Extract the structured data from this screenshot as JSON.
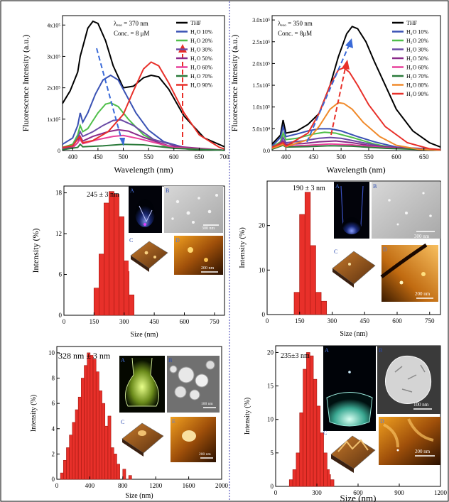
{
  "chart_data": [
    {
      "type": "line",
      "xlabel": "Wavelength (nm)",
      "ylabel": "Fluorescence Intensity (a.u.)",
      "xlim": [
        380,
        700
      ],
      "ylim": [
        0,
        430000
      ],
      "xticks": [
        400,
        450,
        500,
        550,
        600,
        650,
        700
      ],
      "yticks": [
        {
          "v": 0,
          "t": "0"
        },
        {
          "v": 100000,
          "t": "1x10⁵"
        },
        {
          "v": 200000,
          "t": "2x10⁵"
        },
        {
          "v": 300000,
          "t": "3x10⁵"
        },
        {
          "v": 400000,
          "t": "4x10⁵"
        }
      ],
      "annotation": [
        "λₑₓₒ = 370 nm",
        "Conc. = 8 μM"
      ],
      "legend_position": "top-right",
      "series": [
        {
          "name": "THF",
          "color": "#000000",
          "x": [
            380,
            395,
            410,
            415,
            420,
            430,
            440,
            450,
            465,
            480,
            500,
            520,
            540,
            555,
            570,
            590,
            620,
            660,
            700
          ],
          "y": [
            150000,
            190000,
            250000,
            300000,
            330000,
            390000,
            412000,
            405000,
            350000,
            270000,
            200000,
            205000,
            232000,
            240000,
            235000,
            195000,
            110000,
            40000,
            12000
          ]
        },
        {
          "name": "H₂O 10%",
          "color": "#3a52b4",
          "x": [
            380,
            400,
            410,
            415,
            420,
            430,
            445,
            460,
            475,
            490,
            505,
            525,
            550,
            580,
            620,
            660,
            700
          ],
          "y": [
            20000,
            40000,
            80000,
            120000,
            90000,
            120000,
            180000,
            225000,
            240000,
            225000,
            180000,
            120000,
            65000,
            28000,
            10000,
            3000,
            1000
          ]
        },
        {
          "name": "H₂O 20%",
          "color": "#4fbf4a",
          "x": [
            380,
            400,
            410,
            415,
            420,
            430,
            450,
            465,
            475,
            490,
            510,
            540,
            580,
            630,
            700
          ],
          "y": [
            10000,
            20000,
            50000,
            80000,
            60000,
            70000,
            120000,
            148000,
            152000,
            140000,
            100000,
            50000,
            15000,
            4000,
            1000
          ]
        },
        {
          "name": "H₂O 30%",
          "color": "#6a4aa5",
          "x": [
            380,
            400,
            410,
            415,
            420,
            440,
            460,
            480,
            495,
            520,
            560,
            620,
            700
          ],
          "y": [
            8000,
            15000,
            40000,
            60000,
            45000,
            60000,
            80000,
            96000,
            98000,
            80000,
            35000,
            8000,
            1000
          ]
        },
        {
          "name": "H₂O 50%",
          "color": "#8a2a8a",
          "x": [
            380,
            400,
            410,
            415,
            420,
            440,
            470,
            490,
            510,
            540,
            590,
            700
          ],
          "y": [
            5000,
            10000,
            25000,
            45000,
            30000,
            45000,
            60000,
            66000,
            62000,
            42000,
            15000,
            1000
          ]
        },
        {
          "name": "H₂O 60%",
          "color": "#e8409a",
          "x": [
            380,
            400,
            415,
            420,
            450,
            480,
            500,
            530,
            600,
            700
          ],
          "y": [
            4000,
            8000,
            35000,
            22000,
            35000,
            45000,
            48000,
            38000,
            10000,
            1000
          ]
        },
        {
          "name": "H₂O 70%",
          "color": "#2a7a3a",
          "x": [
            380,
            410,
            415,
            420,
            460,
            500,
            540,
            600,
            700
          ],
          "y": [
            3000,
            10000,
            20000,
            12000,
            15000,
            20000,
            18000,
            7000,
            1000
          ]
        },
        {
          "name": "H₂O 90%",
          "color": "#e8302a",
          "x": [
            380,
            400,
            414,
            420,
            440,
            470,
            500,
            520,
            540,
            555,
            570,
            590,
            620,
            650,
            690,
            700
          ],
          "y": [
            10000,
            15000,
            45000,
            25000,
            32000,
            60000,
            115000,
            190000,
            260000,
            282000,
            270000,
            215000,
            120000,
            50000,
            10000,
            5000
          ]
        }
      ]
    },
    {
      "type": "line",
      "xlabel": "Wavelength (nm)",
      "ylabel": "Fluorescence Intensity (a.u.)",
      "xlim": [
        375,
        680
      ],
      "ylim": [
        0,
        310000
      ],
      "xticks": [
        400,
        450,
        500,
        550,
        600,
        650
      ],
      "yticks": [
        {
          "v": 0,
          "t": "0.0"
        },
        {
          "v": 50000,
          "t": "5.0x10⁴"
        },
        {
          "v": 100000,
          "t": "1.0x10⁵"
        },
        {
          "v": 150000,
          "t": "1.5x10⁵"
        },
        {
          "v": 200000,
          "t": "2.0x10⁵"
        },
        {
          "v": 250000,
          "t": "2.5x10⁵"
        },
        {
          "v": 300000,
          "t": "3.0x10⁵"
        }
      ],
      "annotation": [
        "λₑₓₒ = 350 nm",
        "Conc. = 8μM"
      ],
      "legend_position": "top-right",
      "series": [
        {
          "name": "THF",
          "color": "#000000",
          "x": [
            375,
            390,
            395,
            400,
            420,
            440,
            460,
            480,
            495,
            510,
            520,
            530,
            545,
            560,
            580,
            600,
            630,
            660,
            680
          ],
          "y": [
            15000,
            35000,
            70000,
            40000,
            45000,
            60000,
            85000,
            150000,
            215000,
            268000,
            285000,
            280000,
            250000,
            205000,
            150000,
            95000,
            45000,
            18000,
            8000
          ]
        },
        {
          "name": "H₂O 10%",
          "color": "#3a52b4",
          "x": [
            375,
            390,
            395,
            400,
            420,
            440,
            460,
            480,
            500,
            530,
            560,
            600,
            680
          ],
          "y": [
            10000,
            30000,
            55000,
            32000,
            38000,
            45000,
            50000,
            50000,
            45000,
            32000,
            20000,
            8000,
            2000
          ]
        },
        {
          "name": "H₂O 20%",
          "color": "#4fbf4a",
          "x": [
            375,
            390,
            395,
            400,
            420,
            450,
            470,
            490,
            520,
            560,
            600,
            680
          ],
          "y": [
            8000,
            20000,
            40000,
            25000,
            28000,
            38000,
            42000,
            40000,
            30000,
            15000,
            5000,
            1000
          ]
        },
        {
          "name": "H₂O 30%",
          "color": "#6a4aa5",
          "x": [
            375,
            390,
            395,
            400,
            430,
            460,
            480,
            500,
            540,
            580,
            680
          ],
          "y": [
            6000,
            15000,
            30000,
            18000,
            22000,
            28000,
            30000,
            28000,
            18000,
            8000,
            1000
          ]
        },
        {
          "name": "H₂O 50%",
          "color": "#8a2a8a",
          "x": [
            375,
            395,
            400,
            430,
            460,
            490,
            520,
            560,
            680
          ],
          "y": [
            5000,
            22000,
            14000,
            16000,
            20000,
            22000,
            18000,
            10000,
            1000
          ]
        },
        {
          "name": "H₂O 60%",
          "color": "#e8409a",
          "x": [
            375,
            395,
            400,
            440,
            480,
            520,
            580,
            680
          ],
          "y": [
            4000,
            16000,
            10000,
            12000,
            15000,
            13000,
            6000,
            1000
          ]
        },
        {
          "name": "H₂O 70%",
          "color": "#2a7a3a",
          "x": [
            375,
            395,
            400,
            440,
            480,
            520,
            580,
            680
          ],
          "y": [
            3000,
            12000,
            8000,
            9000,
            11000,
            10000,
            5000,
            1000
          ]
        },
        {
          "name": "H₂O 80%",
          "color": "#f08a2a",
          "x": [
            375,
            395,
            400,
            440,
            460,
            480,
            495,
            505,
            520,
            540,
            570,
            600,
            640,
            680
          ],
          "y": [
            5000,
            14000,
            9000,
            25000,
            55000,
            95000,
            110000,
            108000,
            95000,
            65000,
            32000,
            12000,
            3000,
            1000
          ]
        },
        {
          "name": "H₂O 90%",
          "color": "#e8302a",
          "x": [
            375,
            395,
            400,
            440,
            460,
            480,
            495,
            505,
            515,
            530,
            550,
            580,
            620,
            660,
            680
          ],
          "y": [
            8000,
            18000,
            10000,
            40000,
            85000,
            150000,
            185000,
            190000,
            180000,
            150000,
            105000,
            55000,
            18000,
            4000,
            2000
          ]
        }
      ]
    },
    {
      "type": "bar",
      "xlabel": "Size (nm)",
      "ylabel": "Intensity (%)",
      "title": "245 ± 3 nm",
      "xlim": [
        0,
        800
      ],
      "ylim": [
        0,
        19
      ],
      "xticks": [
        0,
        150,
        300,
        450,
        600,
        750
      ],
      "yticks": [
        0,
        6,
        12,
        18
      ],
      "bin_width": 25,
      "x": [
        162,
        187,
        212,
        237,
        262,
        287,
        312,
        337
      ],
      "values": [
        4,
        9,
        16.5,
        18.2,
        17.8,
        14.5,
        8,
        3
      ],
      "inset_labels": [
        "A",
        "B",
        "C",
        "D"
      ],
      "scale_bars": [
        "300 nm",
        "200 nm"
      ]
    },
    {
      "type": "bar",
      "xlabel": "Size (nm)",
      "ylabel": "Intensity (%)",
      "title": "190 ± 3 nm",
      "xlim": [
        0,
        800
      ],
      "ylim": [
        0,
        30
      ],
      "xticks": [
        0,
        150,
        300,
        450,
        600,
        750
      ],
      "yticks": [
        0,
        10,
        20
      ],
      "bin_width": 25,
      "x": [
        137,
        162,
        187,
        212,
        237,
        262
      ],
      "values": [
        5,
        22.5,
        27.5,
        15.5,
        5,
        3
      ],
      "inset_labels": [
        "A",
        "B",
        "C",
        "D"
      ],
      "scale_bars": [
        "300 nm",
        "200 nm"
      ]
    },
    {
      "type": "bar",
      "xlabel": "Size (nm)",
      "ylabel": "Intensity (%)",
      "title": "328 nm ± 3 nm",
      "xlim": [
        0,
        2000
      ],
      "ylim": [
        0,
        10.5
      ],
      "xticks": [
        0,
        400,
        800,
        1200,
        1600,
        2000
      ],
      "yticks": [
        0,
        2,
        4,
        6,
        8,
        10
      ],
      "bin_width": 36,
      "x": [
        62,
        98,
        134,
        170,
        206,
        242,
        278,
        314,
        350,
        386,
        422,
        458,
        494,
        530,
        566,
        602,
        638,
        674,
        710,
        746,
        818,
        890
      ],
      "values": [
        0.5,
        1.5,
        2.5,
        3.5,
        4.5,
        5.5,
        6.5,
        8.0,
        9.0,
        10.0,
        9.8,
        9.5,
        8.5,
        7.0,
        6.0,
        4.2,
        5.0,
        2.5,
        2.0,
        1.2,
        0.8,
        0.3
      ],
      "inset_labels": [
        "A",
        "B",
        "C",
        "E"
      ],
      "scale_bars": [
        "100 nm",
        "200 nm"
      ]
    },
    {
      "type": "bar",
      "xlabel": "Size (nm)",
      "ylabel": "Intensity (%)",
      "title": "235±3 nm",
      "xlim": [
        0,
        1200
      ],
      "ylim": [
        0,
        21
      ],
      "xticks": [
        0,
        300,
        600,
        900,
        1200
      ],
      "yticks": [
        0,
        5,
        10,
        15,
        20
      ],
      "bin_width": 25,
      "x": [
        112,
        137,
        162,
        187,
        212,
        237,
        262,
        287,
        312,
        337,
        362,
        387,
        412
      ],
      "values": [
        1,
        2.5,
        5,
        11,
        17.5,
        20,
        19.5,
        16,
        12,
        8,
        5,
        2.5,
        1
      ],
      "inset_labels": [
        "A",
        "B",
        "C",
        "D"
      ],
      "scale_bars": [
        "100 nm",
        "200 nm"
      ]
    }
  ]
}
